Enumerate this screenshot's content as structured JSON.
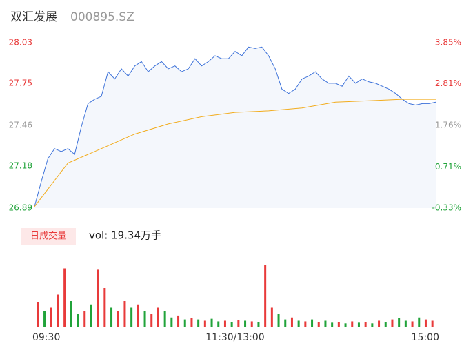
{
  "header": {
    "title": "双汇发展",
    "code": "000895.SZ"
  },
  "chart_data": [
    {
      "type": "line",
      "ylim": [
        26.89,
        28.03
      ],
      "yticks": [
        28.03,
        27.75,
        27.46,
        27.18,
        26.89
      ],
      "y2lim": [
        -0.33,
        3.85
      ],
      "y2ticks": [
        {
          "value": 3.85,
          "label": "3.85%"
        },
        {
          "value": 2.81,
          "label": "2.81%"
        },
        {
          "value": 1.76,
          "label": "1.76%"
        },
        {
          "value": 0.71,
          "label": "0.71%"
        },
        {
          "value": -0.33,
          "label": "-0.33%"
        }
      ],
      "tick_colors": [
        "#e83a3a",
        "#e83a3a",
        "#999999",
        "#21a33a",
        "#21a33a"
      ],
      "xlim": [
        0,
        240
      ],
      "series": [
        {
          "color": "#3d72d9",
          "fill": "#f4f7fc",
          "x": [
            0,
            4,
            8,
            12,
            16,
            20,
            24,
            28,
            32,
            36,
            40,
            44,
            48,
            52,
            56,
            60,
            64,
            68,
            72,
            76,
            80,
            84,
            88,
            92,
            96,
            100,
            104,
            108,
            112,
            116,
            120,
            124,
            128,
            132,
            136,
            140,
            144,
            148,
            152,
            156,
            160,
            164,
            168,
            172,
            176,
            180,
            184,
            188,
            192,
            196,
            200,
            204,
            208,
            212,
            216,
            220,
            224,
            228,
            232,
            236,
            240
          ],
          "values": [
            26.9,
            27.07,
            27.23,
            27.3,
            27.28,
            27.3,
            27.26,
            27.45,
            27.61,
            27.64,
            27.66,
            27.83,
            27.78,
            27.85,
            27.8,
            27.87,
            27.9,
            27.83,
            27.87,
            27.9,
            27.85,
            27.87,
            27.83,
            27.85,
            27.92,
            27.87,
            27.9,
            27.94,
            27.92,
            27.92,
            27.97,
            27.94,
            28.0,
            27.99,
            28.0,
            27.94,
            27.85,
            27.71,
            27.68,
            27.71,
            27.78,
            27.8,
            27.83,
            27.78,
            27.75,
            27.75,
            27.73,
            27.8,
            27.75,
            27.78,
            27.76,
            27.75,
            27.73,
            27.71,
            27.68,
            27.64,
            27.61,
            27.6,
            27.61,
            27.61,
            27.62
          ]
        },
        {
          "color": "#f2ac1c",
          "x": [
            0,
            20,
            40,
            60,
            80,
            100,
            120,
            140,
            160,
            180,
            200,
            220,
            240
          ],
          "values": [
            26.9,
            27.2,
            27.3,
            27.4,
            27.47,
            27.52,
            27.55,
            27.56,
            27.58,
            27.62,
            27.63,
            27.64,
            27.64
          ]
        }
      ]
    },
    {
      "type": "bar",
      "title": "日成交量",
      "subtitle": "vol: 19.34万手",
      "badge_color": "#fde8e8",
      "xlim": [
        0,
        240
      ],
      "ylim": [
        0,
        100
      ],
      "xticks": [
        {
          "value": 0,
          "label": "09:30"
        },
        {
          "value": 120,
          "label": "11:30/13:00"
        },
        {
          "value": 240,
          "label": "15:00"
        }
      ],
      "x": [
        2,
        6,
        10,
        14,
        18,
        22,
        26,
        30,
        34,
        38,
        42,
        46,
        50,
        54,
        58,
        62,
        66,
        70,
        74,
        78,
        82,
        86,
        90,
        94,
        98,
        102,
        106,
        110,
        114,
        118,
        122,
        126,
        130,
        134,
        138,
        142,
        146,
        150,
        154,
        158,
        162,
        166,
        170,
        174,
        178,
        182,
        186,
        190,
        194,
        198,
        202,
        206,
        210,
        214,
        218,
        222,
        226,
        230,
        234,
        238
      ],
      "values": [
        38,
        25,
        30,
        50,
        90,
        40,
        20,
        25,
        35,
        88,
        60,
        30,
        25,
        40,
        30,
        35,
        25,
        20,
        30,
        25,
        15,
        18,
        12,
        14,
        12,
        10,
        13,
        9,
        10,
        8,
        11,
        10,
        9,
        8,
        95,
        30,
        20,
        12,
        15,
        10,
        9,
        12,
        8,
        10,
        7,
        8,
        6,
        9,
        7,
        8,
        6,
        10,
        8,
        12,
        14,
        10,
        9,
        15,
        12,
        10
      ],
      "colors": [
        "#e83a3a",
        "#21a33a",
        "#e83a3a",
        "#e83a3a",
        "#e83a3a",
        "#21a33a",
        "#21a33a",
        "#e83a3a",
        "#21a33a",
        "#e83a3a",
        "#e83a3a",
        "#21a33a",
        "#e83a3a",
        "#e83a3a",
        "#21a33a",
        "#e83a3a",
        "#21a33a",
        "#e83a3a",
        "#e83a3a",
        "#21a33a",
        "#21a33a",
        "#e83a3a",
        "#21a33a",
        "#e83a3a",
        "#21a33a",
        "#e83a3a",
        "#21a33a",
        "#21a33a",
        "#e83a3a",
        "#21a33a",
        "#e83a3a",
        "#21a33a",
        "#e83a3a",
        "#21a33a",
        "#e83a3a",
        "#e83a3a",
        "#21a33a",
        "#21a33a",
        "#e83a3a",
        "#21a33a",
        "#e83a3a",
        "#21a33a",
        "#e83a3a",
        "#21a33a",
        "#21a33a",
        "#e83a3a",
        "#21a33a",
        "#e83a3a",
        "#21a33a",
        "#e83a3a",
        "#21a33a",
        "#e83a3a",
        "#21a33a",
        "#e83a3a",
        "#21a33a",
        "#21a33a",
        "#e83a3a",
        "#21a33a",
        "#e83a3a",
        "#e83a3a"
      ]
    }
  ]
}
